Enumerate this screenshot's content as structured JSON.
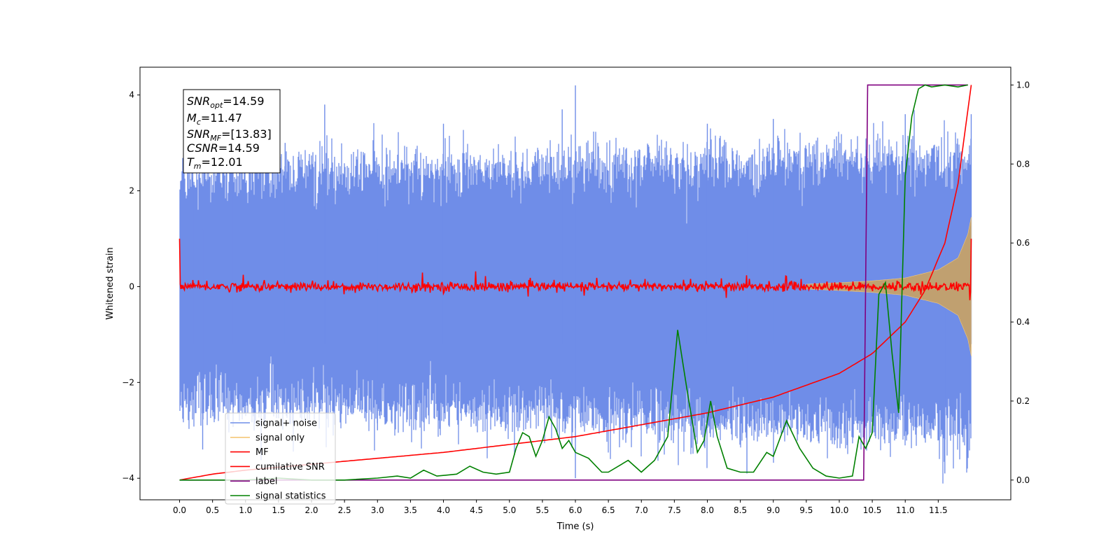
{
  "chart_data": {
    "type": "line",
    "title": "",
    "xlabel": "Time (s)",
    "ylabel": "Whitened strain",
    "xlim": [
      -0.6,
      12.6
    ],
    "ylim": [
      -4.45,
      4.58
    ],
    "y2lim": [
      -0.05,
      1.045
    ],
    "x_ticks": [
      0.0,
      0.5,
      1.0,
      1.5,
      2.0,
      2.5,
      3.0,
      3.5,
      4.0,
      4.5,
      5.0,
      5.5,
      6.0,
      6.5,
      7.0,
      7.5,
      8.0,
      8.5,
      9.0,
      9.5,
      10.0,
      10.5,
      11.0,
      11.5
    ],
    "x_tick_labels": [
      "0.0",
      "0.5",
      "1.0",
      "1.5",
      "2.0",
      "2.5",
      "3.0",
      "3.5",
      "4.0",
      "4.5",
      "5.0",
      "5.5",
      "6.0",
      "6.5",
      "7.0",
      "7.5",
      "8.0",
      "8.5",
      "9.0",
      "9.5",
      "10.0",
      "10.5",
      "11.0",
      "11.5"
    ],
    "y_ticks": [
      -4,
      -2,
      0,
      2,
      4
    ],
    "y_tick_labels": [
      "−4",
      "−2",
      "0",
      "2",
      "4"
    ],
    "y2_ticks": [
      0.0,
      0.2,
      0.4,
      0.6,
      0.8,
      1.0
    ],
    "y2_tick_labels": [
      "0.0",
      "0.2",
      "0.4",
      "0.6",
      "0.8",
      "1.0"
    ],
    "grid": false,
    "legend_position": "bottom-left",
    "colors": {
      "signal_noise": "#6f8de8",
      "signal_only": "#f5c878",
      "signal_fill": "#c0a070",
      "mf": "#ff0000",
      "cumulative_snr": "#ff0000",
      "label": "#800080",
      "signal_statistics": "#008000"
    },
    "annotation": {
      "snr_opt": {
        "base": "SNR",
        "sub": "opt",
        "value": "=14.59"
      },
      "mc": {
        "base": "M",
        "sub": "c",
        "value": "=11.47"
      },
      "snr_mf": {
        "base": "SNR",
        "sub": "MF",
        "value": "=[13.83]"
      },
      "csnr": {
        "base": "CSNR",
        "value": "=14.59"
      },
      "tm": {
        "base": "T",
        "sub": "m",
        "value": "=12.01"
      }
    },
    "series": [
      {
        "name": "signal+ noise",
        "axis": "left",
        "style": "dense noise, approx. amplitude range",
        "x": [
          0.0,
          12.0
        ],
        "envelope_upper": [
          2.5,
          2.9
        ],
        "envelope_lower": [
          -2.6,
          -3.3
        ],
        "spike_peaks": [
          {
            "x": 0.2,
            "y": 2.8
          },
          {
            "x": 0.35,
            "y": -3.4
          },
          {
            "x": 0.8,
            "y": 3.6
          },
          {
            "x": 1.6,
            "y": 3.0
          },
          {
            "x": 2.2,
            "y": 3.8
          },
          {
            "x": 3.0,
            "y": -3.0
          },
          {
            "x": 4.0,
            "y": 3.4
          },
          {
            "x": 5.8,
            "y": 3.7
          },
          {
            "x": 6.0,
            "y": 4.2
          },
          {
            "x": 6.0,
            "y": -4.0
          },
          {
            "x": 8.0,
            "y": 3.4
          },
          {
            "x": 8.6,
            "y": -3.9
          },
          {
            "x": 9.0,
            "y": 3.5
          },
          {
            "x": 11.0,
            "y": 3.6
          },
          {
            "x": 11.6,
            "y": -3.9
          },
          {
            "x": 12.0,
            "y": 3.6
          }
        ]
      },
      {
        "name": "signal only",
        "axis": "left",
        "style": "chirp envelope",
        "x": [
          9.5,
          10.0,
          10.5,
          11.0,
          11.5,
          11.8,
          11.95,
          12.0
        ],
        "amplitude": [
          0.05,
          0.08,
          0.12,
          0.18,
          0.35,
          0.6,
          1.1,
          1.45
        ]
      },
      {
        "name": "MF",
        "axis": "left",
        "x": [
          0.0,
          0.01,
          12.0,
          12.0
        ],
        "y": [
          1.0,
          0.05,
          0.0,
          1.0
        ],
        "noise_amplitude": 0.08
      },
      {
        "name": "cumilative SNR",
        "axis": "right",
        "x": [
          0.0,
          0.5,
          1.0,
          2.0,
          3.0,
          4.0,
          5.0,
          6.0,
          7.0,
          8.0,
          9.0,
          10.0,
          10.5,
          11.0,
          11.3,
          11.6,
          11.8,
          12.0
        ],
        "y": [
          0.0,
          0.015,
          0.025,
          0.04,
          0.055,
          0.07,
          0.09,
          0.11,
          0.14,
          0.17,
          0.21,
          0.27,
          0.32,
          0.4,
          0.48,
          0.6,
          0.75,
          1.0
        ]
      },
      {
        "name": "label",
        "axis": "right",
        "x": [
          0.0,
          10.37,
          10.43,
          11.95
        ],
        "y": [
          0.0,
          0.0,
          1.0,
          1.0
        ]
      },
      {
        "name": "signal statistics",
        "axis": "right",
        "x": [
          0.0,
          0.5,
          1.0,
          1.5,
          2.0,
          2.5,
          3.0,
          3.3,
          3.5,
          3.7,
          3.9,
          4.2,
          4.4,
          4.6,
          4.8,
          5.0,
          5.1,
          5.2,
          5.3,
          5.4,
          5.5,
          5.6,
          5.7,
          5.8,
          5.9,
          6.0,
          6.2,
          6.4,
          6.5,
          6.8,
          7.0,
          7.2,
          7.4,
          7.55,
          7.7,
          7.85,
          7.95,
          8.05,
          8.15,
          8.3,
          8.5,
          8.7,
          8.9,
          9.0,
          9.2,
          9.4,
          9.6,
          9.8,
          10.0,
          10.2,
          10.3,
          10.4,
          10.5,
          10.6,
          10.7,
          10.8,
          10.9,
          11.0,
          11.1,
          11.2,
          11.3,
          11.4,
          11.6,
          11.8,
          11.95
        ],
        "y": [
          0.0,
          0.0,
          0.0,
          0.005,
          0.0,
          0.0,
          0.005,
          0.01,
          0.005,
          0.025,
          0.01,
          0.015,
          0.035,
          0.02,
          0.015,
          0.02,
          0.08,
          0.12,
          0.11,
          0.06,
          0.1,
          0.16,
          0.13,
          0.08,
          0.1,
          0.07,
          0.055,
          0.02,
          0.02,
          0.05,
          0.02,
          0.05,
          0.11,
          0.38,
          0.22,
          0.07,
          0.1,
          0.2,
          0.11,
          0.03,
          0.02,
          0.02,
          0.07,
          0.06,
          0.15,
          0.08,
          0.03,
          0.01,
          0.005,
          0.01,
          0.11,
          0.08,
          0.12,
          0.47,
          0.5,
          0.32,
          0.17,
          0.77,
          0.92,
          0.99,
          1.0,
          0.995,
          1.0,
          0.995,
          1.0
        ]
      }
    ],
    "legend": [
      {
        "label": "signal+ noise",
        "color": "#6f8de8"
      },
      {
        "label": "signal only",
        "color": "#f5c878"
      },
      {
        "label": "MF",
        "color": "#ff0000"
      },
      {
        "label": "cumilative SNR",
        "color": "#ff0000"
      },
      {
        "label": "label",
        "color": "#800080"
      },
      {
        "label": "signal statistics",
        "color": "#008000"
      }
    ]
  }
}
